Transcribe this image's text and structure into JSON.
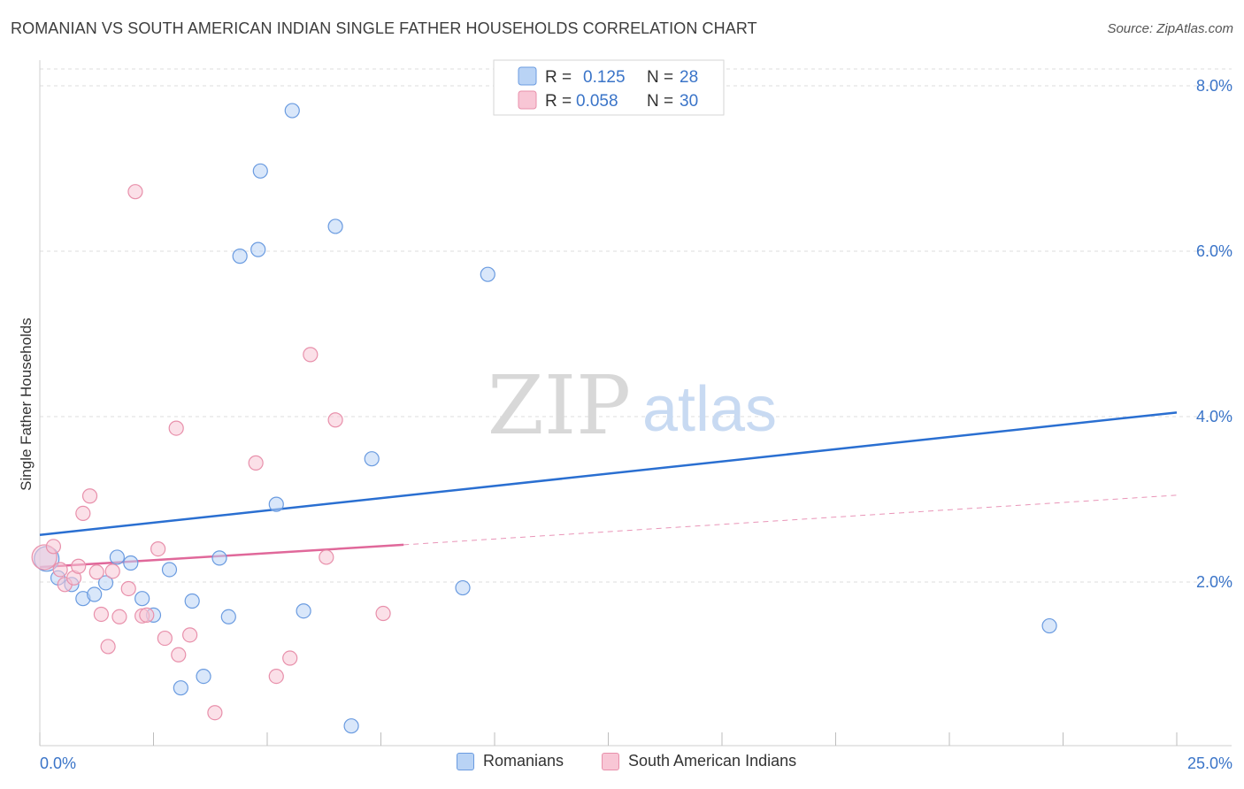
{
  "title": "ROMANIAN VS SOUTH AMERICAN INDIAN SINGLE FATHER HOUSEHOLDS CORRELATION CHART",
  "source": "Source: ZipAtlas.com",
  "watermark": {
    "zip": "ZIP",
    "atlas": "atlas"
  },
  "colors": {
    "romanians_fill": "#b9d3f5",
    "romanians_stroke": "#6a9be0",
    "romanians_line": "#2a6fd1",
    "sai_fill": "#f8c6d5",
    "sai_stroke": "#e890ab",
    "sai_line": "#e0689a",
    "axis_text": "#3a74c8",
    "grid": "#dcdcdc"
  },
  "legend_top": {
    "rows": [
      {
        "r_label": "R =",
        "r_value": "0.125",
        "n_label": "N =",
        "n_value": "28"
      },
      {
        "r_label": "R =",
        "r_value": "0.058",
        "n_label": "N =",
        "n_value": "30"
      }
    ]
  },
  "legend_bottom": {
    "items": [
      {
        "label": "Romanians"
      },
      {
        "label": "South American Indians"
      }
    ]
  },
  "chart_data": {
    "type": "scatter",
    "title": "ROMANIAN VS SOUTH AMERICAN INDIAN SINGLE FATHER HOUSEHOLDS CORRELATION CHART",
    "xlabel": "",
    "ylabel": "Single Father Households",
    "xlim": [
      0,
      25
    ],
    "ylim": [
      0,
      8.4
    ],
    "x_tick_labels": [
      "0.0%",
      "25.0%"
    ],
    "y_ticks": [
      2.0,
      4.0,
      6.0,
      8.0
    ],
    "y_tick_labels": [
      "2.0%",
      "4.0%",
      "6.0%",
      "8.0%"
    ],
    "grid": true,
    "legend_placement": "top-center",
    "series": [
      {
        "name": "Romanians",
        "points": [
          [
            0.15,
            2.28
          ],
          [
            0.4,
            2.05
          ],
          [
            0.7,
            1.97
          ],
          [
            0.95,
            1.8
          ],
          [
            1.2,
            1.85
          ],
          [
            1.45,
            1.99
          ],
          [
            1.7,
            2.3
          ],
          [
            2.0,
            2.23
          ],
          [
            2.25,
            1.8
          ],
          [
            2.5,
            1.6
          ],
          [
            2.85,
            2.15
          ],
          [
            3.1,
            0.72
          ],
          [
            3.35,
            1.77
          ],
          [
            3.6,
            0.86
          ],
          [
            3.95,
            2.29
          ],
          [
            4.15,
            1.58
          ],
          [
            4.4,
            5.94
          ],
          [
            4.8,
            6.02
          ],
          [
            4.85,
            6.97
          ],
          [
            5.2,
            2.94
          ],
          [
            5.55,
            7.7
          ],
          [
            5.8,
            1.65
          ],
          [
            6.5,
            6.3
          ],
          [
            6.85,
            0.26
          ],
          [
            7.3,
            3.49
          ],
          [
            9.3,
            1.93
          ],
          [
            9.85,
            5.72
          ],
          [
            22.2,
            1.47
          ]
        ],
        "trend": {
          "x": [
            0,
            25
          ],
          "y": [
            2.57,
            4.05
          ]
        }
      },
      {
        "name": "South American Indians",
        "points": [
          [
            0.1,
            2.3
          ],
          [
            0.3,
            2.43
          ],
          [
            0.45,
            2.15
          ],
          [
            0.55,
            1.97
          ],
          [
            0.75,
            2.05
          ],
          [
            0.85,
            2.19
          ],
          [
            0.95,
            2.83
          ],
          [
            1.1,
            3.04
          ],
          [
            1.25,
            2.12
          ],
          [
            1.35,
            1.61
          ],
          [
            1.5,
            1.22
          ],
          [
            1.6,
            2.13
          ],
          [
            1.75,
            1.58
          ],
          [
            1.95,
            1.92
          ],
          [
            2.1,
            6.72
          ],
          [
            2.25,
            1.59
          ],
          [
            2.35,
            1.6
          ],
          [
            2.6,
            2.4
          ],
          [
            2.75,
            1.32
          ],
          [
            3.0,
            3.86
          ],
          [
            3.05,
            1.12
          ],
          [
            3.3,
            1.36
          ],
          [
            3.85,
            0.42
          ],
          [
            4.75,
            3.44
          ],
          [
            5.2,
            0.86
          ],
          [
            5.5,
            1.08
          ],
          [
            5.95,
            4.75
          ],
          [
            6.3,
            2.3
          ],
          [
            6.5,
            3.96
          ],
          [
            7.55,
            1.62
          ]
        ],
        "trend": {
          "x": [
            0,
            8
          ],
          "y": [
            2.18,
            2.45
          ]
        },
        "trend_extension": {
          "x": [
            8,
            25
          ],
          "y": [
            2.45,
            3.05
          ]
        }
      }
    ]
  }
}
